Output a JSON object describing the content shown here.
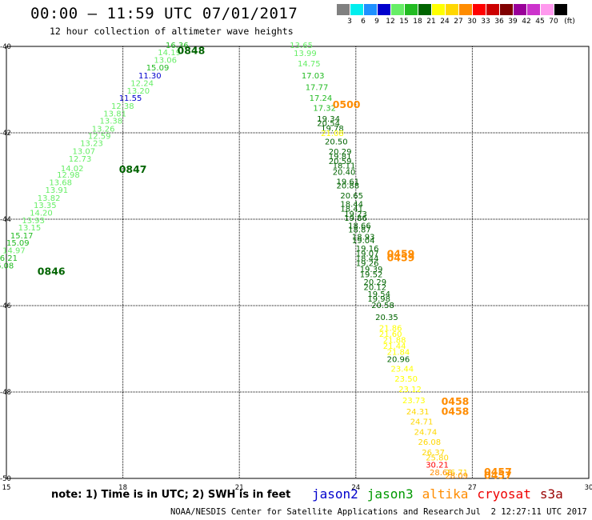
{
  "title": "00:00 – 11:59 UTC 07/01/2017",
  "subtitle": "12 hour collection of altimeter wave heights",
  "color_scale": {
    "unit": "(ft)",
    "bins": [
      {
        "label": "3",
        "color": "#808080"
      },
      {
        "label": "6",
        "color": "#00eeee"
      },
      {
        "label": "9",
        "color": "#1e90ff"
      },
      {
        "label": "12",
        "color": "#0000cd"
      },
      {
        "label": "15",
        "color": "#66ee66"
      },
      {
        "label": "18",
        "color": "#22bb22"
      },
      {
        "label": "21",
        "color": "#006400"
      },
      {
        "label": "24",
        "color": "#ffff00"
      },
      {
        "label": "27",
        "color": "#ffd700"
      },
      {
        "label": "30",
        "color": "#ff8c00"
      },
      {
        "label": "33",
        "color": "#ff0000"
      },
      {
        "label": "36",
        "color": "#cc0000"
      },
      {
        "label": "39",
        "color": "#800000"
      },
      {
        "label": "42",
        "color": "#990099"
      },
      {
        "label": "45",
        "color": "#cc33cc"
      },
      {
        "label": "70",
        "color": "#ff99ee"
      },
      {
        "label": "",
        "color": "#000000"
      }
    ]
  },
  "axes": {
    "lon_ticks": [
      "15",
      "18",
      "21",
      "24",
      "27",
      "30"
    ],
    "lat_ticks": [
      "-40",
      "-42",
      "-44",
      "-46",
      "-48",
      "-50"
    ]
  },
  "chart_data": {
    "type": "map-track",
    "extent": {
      "lon": [
        15,
        30
      ],
      "lat": [
        -50,
        -40
      ]
    },
    "passes": [
      {
        "satellite": "jason3",
        "time_labels": [
          {
            "text": "0848",
            "lon": 19.4,
            "lat": -40.18,
            "color": "#006400"
          },
          {
            "text": "0847",
            "lon": 17.9,
            "lat": -42.93,
            "color": "#006400"
          },
          {
            "text": "0846",
            "lon": 15.8,
            "lat": -45.29,
            "color": "#006400"
          }
        ],
        "points": [
          {
            "v": "16.36",
            "lon": 19.1,
            "lat": -40.04
          },
          {
            "v": "14.19",
            "lon": 18.9,
            "lat": -40.2
          },
          {
            "v": "13.06",
            "lon": 18.8,
            "lat": -40.38
          },
          {
            "v": "15.09",
            "lon": 18.6,
            "lat": -40.56
          },
          {
            "v": "11.30",
            "lon": 18.4,
            "lat": -40.74
          },
          {
            "v": "12.24",
            "lon": 18.2,
            "lat": -40.92
          },
          {
            "v": "13.20",
            "lon": 18.1,
            "lat": -41.09
          },
          {
            "v": "11.55",
            "lon": 17.9,
            "lat": -41.26
          },
          {
            "v": "12.38",
            "lon": 17.7,
            "lat": -41.44
          },
          {
            "v": "13.81",
            "lon": 17.5,
            "lat": -41.62
          },
          {
            "v": "13.38",
            "lon": 17.4,
            "lat": -41.79
          },
          {
            "v": "13.26",
            "lon": 17.2,
            "lat": -41.97
          },
          {
            "v": "12.59",
            "lon": 17.1,
            "lat": -42.14
          },
          {
            "v": "13.23",
            "lon": 16.9,
            "lat": -42.31
          },
          {
            "v": "13.07",
            "lon": 16.7,
            "lat": -42.49
          },
          {
            "v": "12.73",
            "lon": 16.6,
            "lat": -42.67
          },
          {
            "v": "14.02",
            "lon": 16.4,
            "lat": -42.89
          },
          {
            "v": "12.98",
            "lon": 16.3,
            "lat": -43.04
          },
          {
            "v": "13.68",
            "lon": 16.1,
            "lat": -43.21
          },
          {
            "v": "13.91",
            "lon": 16.0,
            "lat": -43.39
          },
          {
            "v": "13.82",
            "lon": 15.8,
            "lat": -43.57
          },
          {
            "v": "13.35",
            "lon": 15.7,
            "lat": -43.74
          },
          {
            "v": "14.20",
            "lon": 15.6,
            "lat": -43.92
          },
          {
            "v": "13.93",
            "lon": 15.4,
            "lat": -44.09
          },
          {
            "v": "13.15",
            "lon": 15.3,
            "lat": -44.26
          },
          {
            "v": "15.17",
            "lon": 15.1,
            "lat": -44.44
          },
          {
            "v": "15.09",
            "lon": 15.0,
            "lat": -44.61
          },
          {
            "v": "14.97",
            "lon": 14.9,
            "lat": -44.79
          },
          {
            "v": "16.21",
            "lon": 14.7,
            "lat": -44.96
          },
          {
            "v": "16.08",
            "lon": 14.6,
            "lat": -45.14
          }
        ]
      },
      {
        "satellite": "altika",
        "time_labels": [
          {
            "text": "0500",
            "lon": 23.4,
            "lat": -41.43,
            "color": "#ff8c00"
          },
          {
            "text": "0459",
            "lon": 24.8,
            "lat": -44.88,
            "color": "#ff8c00"
          },
          {
            "text": "0459",
            "lon": 24.8,
            "lat": -44.97,
            "color": "#ff8c00"
          },
          {
            "text": "0458",
            "lon": 26.2,
            "lat": -48.3,
            "color": "#ff8c00"
          },
          {
            "text": "0458",
            "lon": 26.2,
            "lat": -48.53,
            "color": "#ff8c00"
          },
          {
            "text": "0457",
            "lon": 27.3,
            "lat": -49.93,
            "color": "#ff8c00"
          },
          {
            "text": "0457",
            "lon": 27.3,
            "lat": -50.01,
            "color": "#ff8c00"
          }
        ],
        "points": [
          {
            "v": "13.65",
            "lon": 22.3,
            "lat": -40.04
          },
          {
            "v": "13.99",
            "lon": 22.4,
            "lat": -40.22
          },
          {
            "v": "14.75",
            "lon": 22.5,
            "lat": -40.46
          },
          {
            "v": "17.03",
            "lon": 22.6,
            "lat": -40.74
          },
          {
            "v": "17.77",
            "lon": 22.7,
            "lat": -41.01
          },
          {
            "v": "17.24",
            "lon": 22.8,
            "lat": -41.26
          },
          {
            "v": "17.32",
            "lon": 22.9,
            "lat": -41.49
          },
          {
            "v": "19.34",
            "lon": 23.0,
            "lat": -41.74
          },
          {
            "v": "20.54",
            "lon": 23.0,
            "lat": -41.84
          },
          {
            "v": "19.78",
            "lon": 23.1,
            "lat": -41.96
          },
          {
            "v": "21.08",
            "lon": 23.1,
            "lat": -42.07
          },
          {
            "v": "20.50",
            "lon": 23.2,
            "lat": -42.27
          },
          {
            "v": "20.29",
            "lon": 23.3,
            "lat": -42.5
          },
          {
            "v": "19.81",
            "lon": 23.3,
            "lat": -42.61
          },
          {
            "v": "20.59",
            "lon": 23.3,
            "lat": -42.72
          },
          {
            "v": "18.11",
            "lon": 23.4,
            "lat": -42.82
          },
          {
            "v": "20.40",
            "lon": 23.4,
            "lat": -42.97
          },
          {
            "v": "19.61",
            "lon": 23.5,
            "lat": -43.19
          },
          {
            "v": "20.88",
            "lon": 23.5,
            "lat": -43.29
          },
          {
            "v": "20.65",
            "lon": 23.6,
            "lat": -43.52
          },
          {
            "v": "18.44",
            "lon": 23.6,
            "lat": -43.71
          },
          {
            "v": "18.41",
            "lon": 23.6,
            "lat": -43.82
          },
          {
            "v": "19.23",
            "lon": 23.7,
            "lat": -43.94
          },
          {
            "v": "19.86",
            "lon": 23.7,
            "lat": -44.04
          },
          {
            "v": "18.66",
            "lon": 23.8,
            "lat": -44.21
          },
          {
            "v": "18.87",
            "lon": 23.8,
            "lat": -44.31
          },
          {
            "v": "18.93",
            "lon": 23.9,
            "lat": -44.47
          },
          {
            "v": "19.04",
            "lon": 23.9,
            "lat": -44.56
          },
          {
            "v": "19.16",
            "lon": 24.0,
            "lat": -44.74
          },
          {
            "v": "19.07",
            "lon": 24.0,
            "lat": -44.86
          },
          {
            "v": "18.44",
            "lon": 24.0,
            "lat": -44.97
          },
          {
            "v": "19.26",
            "lon": 24.0,
            "lat": -45.08
          },
          {
            "v": "19.39",
            "lon": 24.1,
            "lat": -45.22
          },
          {
            "v": "19.52",
            "lon": 24.1,
            "lat": -45.34
          },
          {
            "v": "20.29",
            "lon": 24.2,
            "lat": -45.52
          },
          {
            "v": "20.12",
            "lon": 24.2,
            "lat": -45.64
          },
          {
            "v": "19.54",
            "lon": 24.3,
            "lat": -45.8
          },
          {
            "v": "19.98",
            "lon": 24.3,
            "lat": -45.91
          },
          {
            "v": "20.58",
            "lon": 24.4,
            "lat": -46.06
          },
          {
            "v": "20.35",
            "lon": 24.5,
            "lat": -46.33
          },
          {
            "v": "21.86",
            "lon": 24.6,
            "lat": -46.58
          },
          {
            "v": "21.60",
            "lon": 24.6,
            "lat": -46.72
          },
          {
            "v": "21.88",
            "lon": 24.7,
            "lat": -46.86
          },
          {
            "v": "21.44",
            "lon": 24.7,
            "lat": -47.0
          },
          {
            "v": "21.84",
            "lon": 24.8,
            "lat": -47.14
          },
          {
            "v": "20.96",
            "lon": 24.8,
            "lat": -47.31
          },
          {
            "v": "23.44",
            "lon": 24.9,
            "lat": -47.53
          },
          {
            "v": "23.50",
            "lon": 25.0,
            "lat": -47.76
          },
          {
            "v": "23.12",
            "lon": 25.1,
            "lat": -48.0
          },
          {
            "v": "23.73",
            "lon": 25.2,
            "lat": -48.26
          },
          {
            "v": "24.31",
            "lon": 25.3,
            "lat": -48.52
          },
          {
            "v": "24.71",
            "lon": 25.4,
            "lat": -48.75
          },
          {
            "v": "24.74",
            "lon": 25.5,
            "lat": -48.99
          },
          {
            "v": "26.08",
            "lon": 25.6,
            "lat": -49.22
          },
          {
            "v": "26.37",
            "lon": 25.7,
            "lat": -49.46
          },
          {
            "v": "25.80",
            "lon": 25.8,
            "lat": -49.58
          },
          {
            "v": "30.21",
            "lon": 25.8,
            "lat": -49.75
          },
          {
            "v": "28.68",
            "lon": 25.9,
            "lat": -49.93
          },
          {
            "v": "26.71",
            "lon": 26.3,
            "lat": -49.93
          },
          {
            "v": "28.09",
            "lon": 26.3,
            "lat": -50.0
          }
        ]
      }
    ]
  },
  "note": "note: 1) Time is in UTC; 2) SWH is in feet",
  "legend": [
    {
      "label": "jason2",
      "color": "#0000cc"
    },
    {
      "label": "jason3",
      "color": "#009900"
    },
    {
      "label": "altika",
      "color": "#ff8c00"
    },
    {
      "label": "cryosat",
      "color": "#ee0000"
    },
    {
      "label": "s3a",
      "color": "#990000"
    }
  ],
  "credit": "NOAA/NESDIS Center for Satellite Applications and Research",
  "timestamp": "Jul  2 12:27:11 UTC 2017"
}
